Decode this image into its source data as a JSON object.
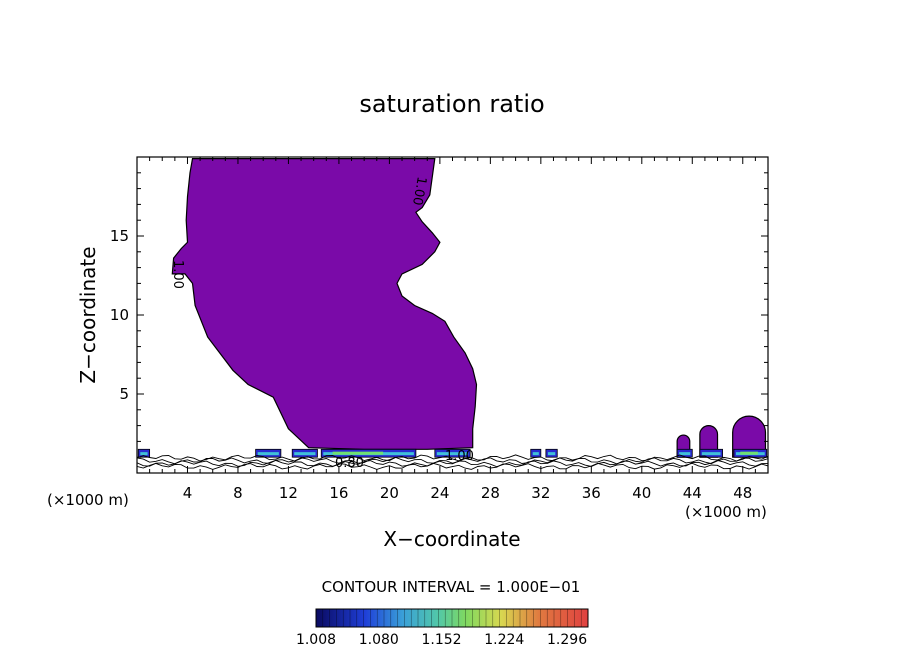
{
  "chart_data": {
    "type": "contour",
    "title": "saturation ratio",
    "xlabel": "X−coordinate",
    "ylabel": "Z−coordinate",
    "x_unit_left": "(×1000 m)",
    "x_unit_right": "(×1000 m)",
    "xlim": [
      0,
      50
    ],
    "ylim": [
      0,
      20
    ],
    "x_ticks": [
      4,
      8,
      12,
      16,
      20,
      24,
      28,
      32,
      36,
      40,
      44,
      48
    ],
    "y_ticks": [
      5,
      10,
      15
    ],
    "fill_color": "#7a0aa8",
    "contour_labels": [
      "1.00",
      "1.00",
      "0.80",
      "1.00"
    ],
    "contour_interval_text": "CONTOUR INTERVAL = 1.000E−01",
    "colorbar": {
      "min": 1.008,
      "max": 1.32,
      "tick_labels": [
        "1.008",
        "1.080",
        "1.152",
        "1.224",
        "1.296"
      ]
    },
    "main_region": [
      [
        4.4,
        19.9
      ],
      [
        23.6,
        19.9
      ],
      [
        23.2,
        17.6
      ],
      [
        22.6,
        16.8
      ],
      [
        22.1,
        16.5
      ],
      [
        22.6,
        15.9
      ],
      [
        23.4,
        15.2
      ],
      [
        24.0,
        14.6
      ],
      [
        23.6,
        14.0
      ],
      [
        22.6,
        13.2
      ],
      [
        21.0,
        12.6
      ],
      [
        20.6,
        12.0
      ],
      [
        21.0,
        11.2
      ],
      [
        22.0,
        10.6
      ],
      [
        23.4,
        10.1
      ],
      [
        24.4,
        9.6
      ],
      [
        25.1,
        8.6
      ],
      [
        26.0,
        7.6
      ],
      [
        26.6,
        6.6
      ],
      [
        26.9,
        5.6
      ],
      [
        26.8,
        4.2
      ],
      [
        26.6,
        2.8
      ],
      [
        26.6,
        1.6
      ],
      [
        23.0,
        1.5
      ],
      [
        18.0,
        1.5
      ],
      [
        13.6,
        1.6
      ],
      [
        12.0,
        2.8
      ],
      [
        10.8,
        4.8
      ],
      [
        8.8,
        5.6
      ],
      [
        7.6,
        6.5
      ],
      [
        5.6,
        8.6
      ],
      [
        4.6,
        10.6
      ],
      [
        4.4,
        12.0
      ],
      [
        3.8,
        12.6
      ],
      [
        2.8,
        12.6
      ],
      [
        2.9,
        13.6
      ],
      [
        3.5,
        14.2
      ],
      [
        4.0,
        14.6
      ],
      [
        3.9,
        16.0
      ],
      [
        4.0,
        17.5
      ],
      [
        4.2,
        19.0
      ]
    ],
    "bumps": [
      {
        "x0": 42.8,
        "x1": 43.8,
        "top": 2.4
      },
      {
        "x0": 44.6,
        "x1": 46.0,
        "top": 3.0
      },
      {
        "x0": 47.2,
        "x1": 49.8,
        "top": 3.6
      }
    ],
    "low_band_segments": [
      [
        0.1,
        1.0
      ],
      [
        9.4,
        11.4
      ],
      [
        12.3,
        14.3
      ],
      [
        14.6,
        22.1
      ],
      [
        23.6,
        26.4
      ],
      [
        31.2,
        32.0
      ],
      [
        32.4,
        33.3
      ],
      [
        42.8,
        44.0
      ],
      [
        44.6,
        46.4
      ],
      [
        47.3,
        49.9
      ]
    ]
  }
}
